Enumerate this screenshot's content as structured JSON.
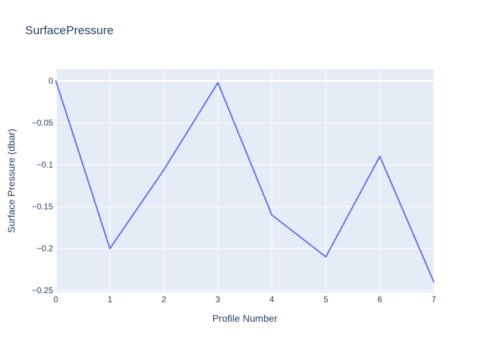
{
  "chart_data": {
    "type": "line",
    "title": "SurfacePressure",
    "xlabel": "Profile Number",
    "ylabel": "Surface Pressure (dbar)",
    "x": [
      0,
      1,
      2,
      3,
      4,
      5,
      6,
      7
    ],
    "y": [
      0,
      -0.2,
      -0.106,
      -0.002,
      -0.16,
      -0.21,
      -0.09,
      -0.24
    ],
    "x_ticks": {
      "values": [
        0,
        1,
        2,
        3,
        4,
        5,
        6,
        7
      ],
      "labels": [
        "0",
        "1",
        "2",
        "3",
        "4",
        "5",
        "6",
        "7"
      ]
    },
    "y_ticks": {
      "values": [
        0,
        -0.05,
        -0.1,
        -0.15,
        -0.2,
        -0.25
      ],
      "labels": [
        "0",
        "−0.05",
        "−0.1",
        "−0.15",
        "−0.2",
        "−0.25"
      ]
    },
    "x_range": [
      0,
      7
    ],
    "y_range": [
      -0.2525,
      0.0142
    ],
    "grid": true,
    "legend": false,
    "colors": {
      "line": "#636efa",
      "plot_background": "#e5ecf6",
      "gridline": "#ffffff",
      "text": "#2a3f5f",
      "paper_background": "#ffffff"
    }
  }
}
